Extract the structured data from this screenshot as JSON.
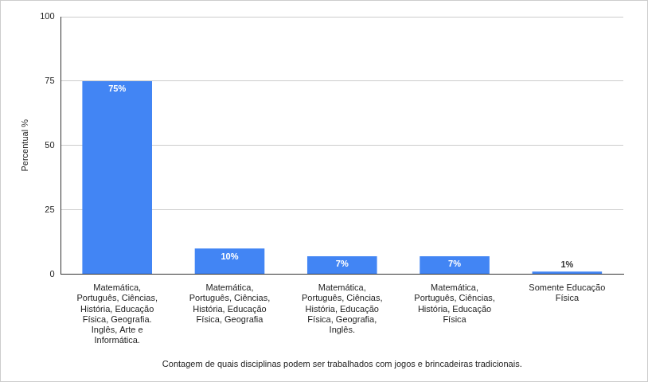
{
  "chart_data": {
    "type": "bar",
    "categories": [
      "Matemática, Português, Ciências, História, Educação Física, Geografia. Inglês, Arte e Informática.",
      "Matemática, Português, Ciências, História, Educação Física, Geografia",
      "Matemática, Português, Ciências, História, Educação Física, Geografia, Inglês.",
      "Matemática, Português, Ciências, História, Educação Física",
      "Somente Educação Física"
    ],
    "values": [
      75,
      10,
      7,
      7,
      1
    ],
    "value_labels": [
      "75%",
      "10%",
      "7%",
      "7%",
      "1%"
    ],
    "data_labels": true,
    "color": "#4285f4",
    "x_label": "Contagem de quais disciplinas podem ser trabalhados com jogos e brincadeiras tradicionais.",
    "y_label": "Percentual %",
    "ylim": [
      0,
      100
    ],
    "yticks": [
      0,
      25,
      50,
      75,
      100
    ],
    "grid": true
  }
}
